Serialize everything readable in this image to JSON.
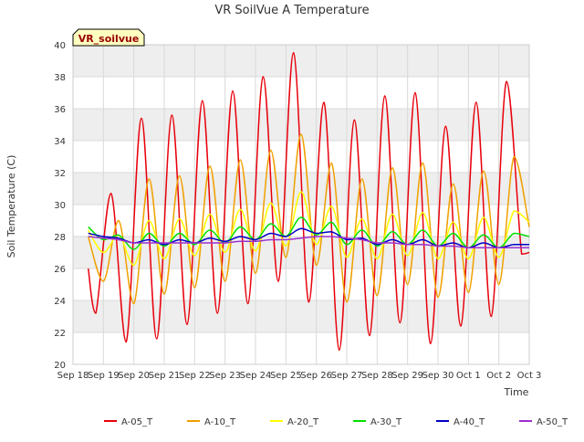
{
  "colors": {
    "A-05_T": "#e8000b",
    "A-10_T": "#f0a000",
    "A-20_T": "#ffff00",
    "A-30_T": "#00e000",
    "A-40_T": "#0000c8",
    "A-50_T": "#9b30d0",
    "band": "#eeeeee",
    "grid": "#d9d9d9",
    "badge_bg": "#ffffc0",
    "badge_text": "#990000"
  },
  "chart_data": {
    "type": "line",
    "title": "VR SoilVue A Temperature",
    "badge": "VR_soilvue",
    "xlabel": "Time",
    "ylabel": "Soil Temperature (C)",
    "xlim": [
      "2024-09-18",
      "2024-10-03"
    ],
    "ylim": [
      20,
      40
    ],
    "x_tick_labels": [
      "Sep 18",
      "Sep 19",
      "Sep 20",
      "Sep 21",
      "Sep 22",
      "Sep 23",
      "Sep 24",
      "Sep 25",
      "Sep 26",
      "Sep 27",
      "Sep 28",
      "Sep 29",
      "Sep 30",
      "Oct 1",
      "Oct 2",
      "Oct 3"
    ],
    "y_ticks": [
      20,
      22,
      24,
      26,
      28,
      30,
      32,
      34,
      36,
      38,
      40
    ],
    "grid": true,
    "legend_placement": "bottom",
    "series": [
      {
        "name": "A-05_T",
        "x": [
          "09-18 12:00",
          "09-18 18:00",
          "09-19 06:00",
          "09-19 18:00",
          "09-20 06:00",
          "09-20 18:00",
          "09-21 06:00",
          "09-21 18:00",
          "09-22 06:00",
          "09-22 18:00",
          "09-23 06:00",
          "09-23 18:00",
          "09-24 06:00",
          "09-24 18:00",
          "09-25 06:00",
          "09-25 18:00",
          "09-26 06:00",
          "09-26 18:00",
          "09-27 06:00",
          "09-27 18:00",
          "09-28 06:00",
          "09-28 18:00",
          "09-29 06:00",
          "09-29 18:00",
          "09-30 06:00",
          "09-30 18:00",
          "10-01 06:00",
          "10-01 18:00",
          "10-02 06:00",
          "10-02 18:00",
          "10-03 00:00"
        ],
        "values": [
          26.0,
          23.2,
          30.7,
          21.4,
          35.4,
          21.6,
          35.6,
          22.5,
          36.5,
          23.2,
          37.1,
          23.8,
          38.0,
          25.2,
          39.5,
          23.9,
          36.4,
          20.9,
          35.3,
          21.8,
          36.8,
          22.6,
          37.0,
          21.3,
          34.9,
          22.4,
          36.4,
          23.0,
          37.7,
          26.9,
          27.0
        ]
      },
      {
        "name": "A-10_T",
        "x": [
          "09-18 12:00",
          "09-19 00:00",
          "09-19 12:00",
          "09-20 00:00",
          "09-20 12:00",
          "09-21 00:00",
          "09-21 12:00",
          "09-22 00:00",
          "09-22 12:00",
          "09-23 00:00",
          "09-23 12:00",
          "09-24 00:00",
          "09-24 12:00",
          "09-25 00:00",
          "09-25 12:00",
          "09-26 00:00",
          "09-26 12:00",
          "09-27 00:00",
          "09-27 12:00",
          "09-28 00:00",
          "09-28 12:00",
          "09-29 00:00",
          "09-29 12:00",
          "09-30 00:00",
          "09-30 12:00",
          "10-01 00:00",
          "10-01 12:00",
          "10-02 00:00",
          "10-02 12:00",
          "10-03 00:00"
        ],
        "values": [
          28.0,
          25.2,
          29.0,
          23.8,
          31.6,
          24.4,
          31.8,
          24.8,
          32.4,
          25.2,
          32.8,
          25.7,
          33.4,
          26.7,
          34.4,
          26.2,
          32.6,
          23.9,
          31.6,
          24.3,
          32.3,
          25.0,
          32.6,
          24.2,
          31.3,
          24.5,
          32.1,
          25.0,
          33.0,
          28.6
        ]
      },
      {
        "name": "A-20_T",
        "x": [
          "09-18 12:00",
          "09-19 00:00",
          "09-19 12:00",
          "09-20 00:00",
          "09-20 12:00",
          "09-21 00:00",
          "09-21 12:00",
          "09-22 00:00",
          "09-22 12:00",
          "09-23 00:00",
          "09-23 12:00",
          "09-24 00:00",
          "09-24 12:00",
          "09-25 00:00",
          "09-25 12:00",
          "09-26 00:00",
          "09-26 12:00",
          "09-27 00:00",
          "09-27 12:00",
          "09-28 00:00",
          "09-28 12:00",
          "09-29 00:00",
          "09-29 12:00",
          "09-30 00:00",
          "09-30 12:00",
          "10-01 00:00",
          "10-01 12:00",
          "10-02 00:00",
          "10-02 12:00",
          "10-03 00:00"
        ],
        "values": [
          28.4,
          27.0,
          28.1,
          26.2,
          29.0,
          26.6,
          29.1,
          26.8,
          29.4,
          27.0,
          29.7,
          27.1,
          30.1,
          27.4,
          30.8,
          27.5,
          29.9,
          26.7,
          29.1,
          26.6,
          29.4,
          26.8,
          29.5,
          26.6,
          28.9,
          26.6,
          29.2,
          26.7,
          29.6,
          28.9
        ]
      },
      {
        "name": "A-30_T",
        "x": [
          "09-18 12:00",
          "09-19 00:00",
          "09-19 12:00",
          "09-20 00:00",
          "09-20 12:00",
          "09-21 00:00",
          "09-21 12:00",
          "09-22 00:00",
          "09-22 12:00",
          "09-23 00:00",
          "09-23 12:00",
          "09-24 00:00",
          "09-24 12:00",
          "09-25 00:00",
          "09-25 12:00",
          "09-26 00:00",
          "09-26 12:00",
          "09-27 00:00",
          "09-27 12:00",
          "09-28 00:00",
          "09-28 12:00",
          "09-29 00:00",
          "09-29 12:00",
          "09-30 00:00",
          "09-30 12:00",
          "10-01 00:00",
          "10-01 12:00",
          "10-02 00:00",
          "10-02 12:00",
          "10-03 00:00"
        ],
        "values": [
          28.6,
          27.8,
          28.1,
          27.2,
          28.2,
          27.4,
          28.2,
          27.5,
          28.4,
          27.6,
          28.6,
          27.8,
          28.8,
          28.0,
          29.2,
          28.1,
          28.9,
          27.5,
          28.4,
          27.4,
          28.3,
          27.5,
          28.4,
          27.4,
          28.2,
          27.3,
          28.1,
          27.3,
          28.2,
          28.0
        ]
      },
      {
        "name": "A-40_T",
        "x": [
          "09-18 12:00",
          "09-19 00:00",
          "09-19 12:00",
          "09-20 00:00",
          "09-20 12:00",
          "09-21 00:00",
          "09-21 12:00",
          "09-22 00:00",
          "09-22 12:00",
          "09-23 00:00",
          "09-23 12:00",
          "09-24 00:00",
          "09-24 12:00",
          "09-25 00:00",
          "09-25 12:00",
          "09-26 00:00",
          "09-26 12:00",
          "09-27 00:00",
          "09-27 12:00",
          "09-28 00:00",
          "09-28 12:00",
          "09-29 00:00",
          "09-29 12:00",
          "09-30 00:00",
          "09-30 12:00",
          "10-01 00:00",
          "10-01 12:00",
          "10-02 00:00",
          "10-02 12:00",
          "10-03 00:00"
        ],
        "values": [
          28.2,
          28.0,
          27.9,
          27.6,
          27.8,
          27.5,
          27.8,
          27.6,
          27.9,
          27.7,
          28.0,
          27.8,
          28.2,
          28.0,
          28.5,
          28.2,
          28.3,
          27.8,
          27.9,
          27.5,
          27.8,
          27.5,
          27.8,
          27.4,
          27.6,
          27.3,
          27.6,
          27.3,
          27.5,
          27.5
        ]
      },
      {
        "name": "A-50_T",
        "x": [
          "09-18 12:00",
          "09-19 00:00",
          "09-19 12:00",
          "09-20 00:00",
          "09-20 12:00",
          "09-21 00:00",
          "09-21 12:00",
          "09-22 00:00",
          "09-22 12:00",
          "09-23 00:00",
          "09-23 12:00",
          "09-24 00:00",
          "09-24 12:00",
          "09-25 00:00",
          "09-25 12:00",
          "09-26 00:00",
          "09-26 12:00",
          "09-27 00:00",
          "09-27 12:00",
          "09-28 00:00",
          "09-28 12:00",
          "09-29 00:00",
          "09-29 12:00",
          "09-30 00:00",
          "09-30 12:00",
          "10-01 00:00",
          "10-01 12:00",
          "10-02 00:00",
          "10-02 12:00",
          "10-03 00:00"
        ],
        "values": [
          28.0,
          27.9,
          27.8,
          27.6,
          27.6,
          27.6,
          27.6,
          27.6,
          27.6,
          27.6,
          27.7,
          27.7,
          27.8,
          27.8,
          27.9,
          28.0,
          28.0,
          27.9,
          27.8,
          27.6,
          27.6,
          27.5,
          27.5,
          27.4,
          27.4,
          27.3,
          27.3,
          27.3,
          27.3,
          27.3
        ]
      }
    ]
  }
}
